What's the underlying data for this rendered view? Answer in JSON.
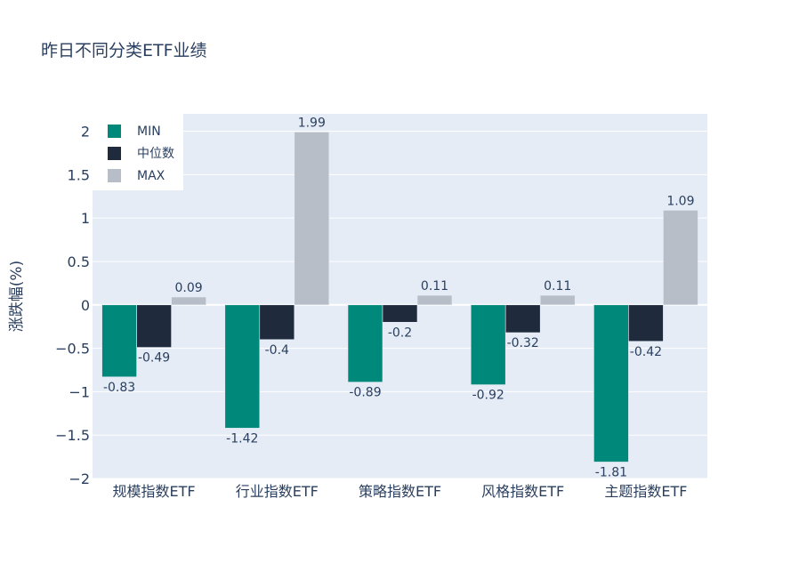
{
  "chart_data": {
    "type": "bar",
    "title": "昨日不同分类ETF业绩",
    "ylabel": "涨跌幅(%)",
    "xlabel": "",
    "categories": [
      "规模指数ETF",
      "行业指数ETF",
      "策略指数ETF",
      "风格指数ETF",
      "主题指数ETF"
    ],
    "series": [
      {
        "name": "MIN",
        "color": "#00897b",
        "values": [
          -0.83,
          -1.42,
          -0.89,
          -0.92,
          -1.81
        ]
      },
      {
        "name": "中位数",
        "color": "#1f2a3c",
        "values": [
          -0.49,
          -0.4,
          -0.2,
          -0.32,
          -0.42
        ]
      },
      {
        "name": "MAX",
        "color": "#b8bec7",
        "values": [
          0.09,
          1.99,
          0.11,
          0.11,
          1.09
        ]
      }
    ],
    "ylim": [
      -2,
      2.2
    ],
    "yticks": [
      2,
      1.5,
      1,
      0.5,
      0,
      -0.5,
      -1,
      -1.5,
      -2
    ],
    "ytick_labels": [
      "2",
      "1.5",
      "1",
      "0.5",
      "0",
      "−0.5",
      "−1",
      "−1.5",
      "−2"
    ],
    "grid": true,
    "legend_position": "top-left",
    "plot_background": "#e5ecf6"
  }
}
